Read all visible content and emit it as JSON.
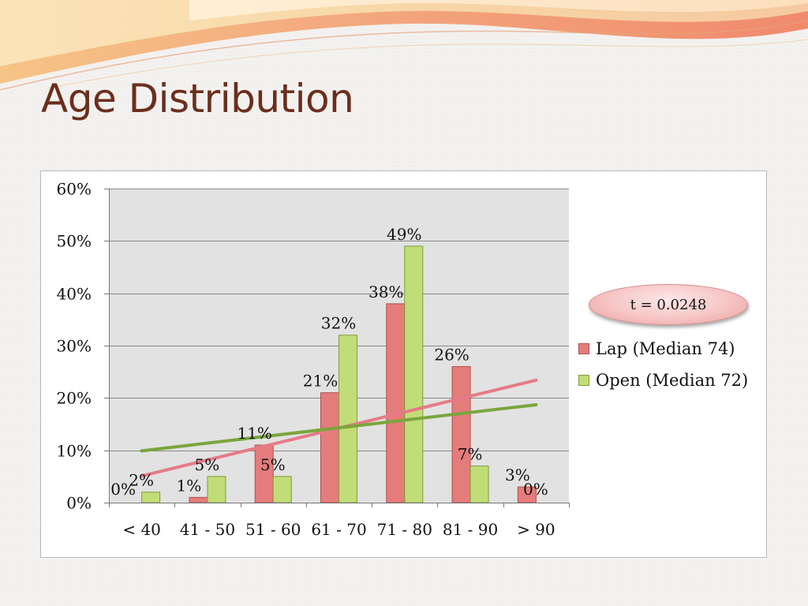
{
  "slide": {
    "title": "Age Distribution"
  },
  "annotation": {
    "text": "t = 0.0248"
  },
  "colors": {
    "lap_fill": "#e57c7c",
    "lap_border": "#b14f4f",
    "open_fill": "#c1dd77",
    "open_border": "#7f9e3b",
    "lap_trend": "#e57b86",
    "open_trend": "#7aa63c",
    "title": "#6b2e1c",
    "plot_background": "#e2e2e2",
    "gridline": "#8a8a8a"
  },
  "chart_data": {
    "type": "bar",
    "title": "",
    "xlabel": "",
    "ylabel": "",
    "categories": [
      "< 40",
      "41 - 50",
      "51 - 60",
      "61 - 70",
      "71 - 80",
      "81 - 90",
      "> 90"
    ],
    "ylim": [
      0,
      60
    ],
    "yticks": [
      0,
      10,
      20,
      30,
      40,
      50,
      60
    ],
    "ytick_labels": [
      "0%",
      "10%",
      "20%",
      "30%",
      "40%",
      "50%",
      "60%"
    ],
    "grid": true,
    "legend": "right",
    "series": [
      {
        "name": "Lap (Median 74)",
        "values": [
          0,
          1,
          11,
          21,
          38,
          26,
          3
        ],
        "labels": [
          "0%",
          "1%",
          "11%",
          "21%",
          "38%",
          "26%",
          "3%"
        ]
      },
      {
        "name": "Open (Median 72)",
        "values": [
          2,
          5,
          5,
          32,
          49,
          7,
          0
        ],
        "labels": [
          "2%",
          "5%",
          "5%",
          "32%",
          "49%",
          "7%",
          "0%"
        ]
      }
    ],
    "trendlines": [
      {
        "series": "Lap (Median 74)",
        "type": "linear",
        "start": 5.1,
        "end": 23.4
      },
      {
        "series": "Open (Median 72)",
        "type": "linear",
        "start": 9.9,
        "end": 18.7
      }
    ]
  }
}
